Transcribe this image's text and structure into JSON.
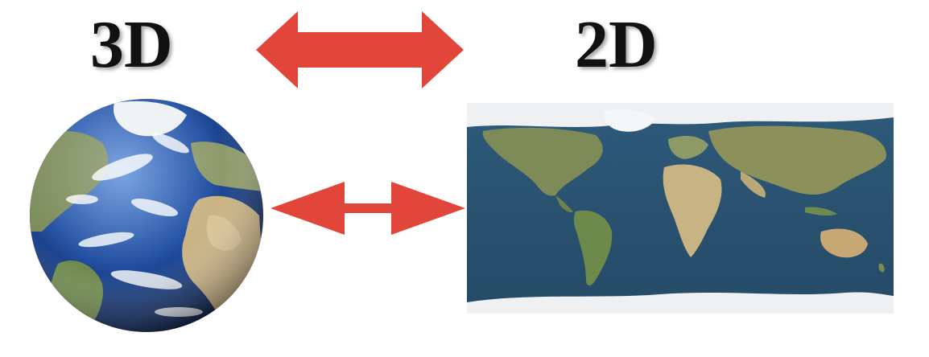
{
  "labels": {
    "left": "3D",
    "right": "2D"
  },
  "colors": {
    "arrow": "#e2453a",
    "ocean": "#2d5878",
    "land": "#8e8a55",
    "ice": "#eef0f2",
    "globe_ocean": "#1f4da0"
  },
  "images": {
    "globe": "earth-globe-icon",
    "map": "world-map-icon"
  },
  "arrows": {
    "top": "double-arrow-icon",
    "middle": "double-arrow-icon"
  }
}
